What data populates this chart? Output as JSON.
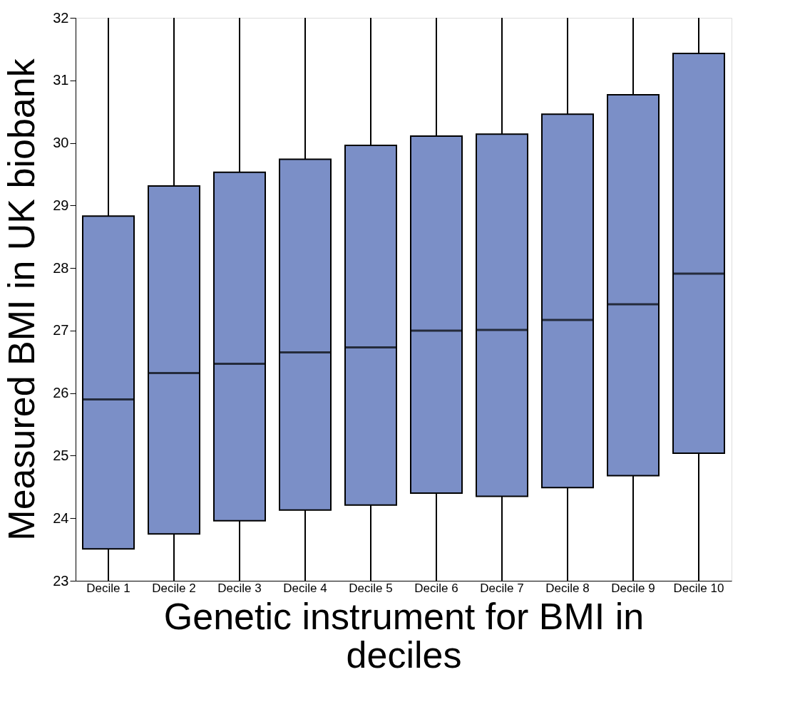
{
  "chart_data": {
    "type": "box",
    "xlabel": "Genetic instrument for BMI in deciles",
    "ylabel": "Measured BMI in UK biobank",
    "categories": [
      "Decile 1",
      "Decile 2",
      "Decile 3",
      "Decile 4",
      "Decile 5",
      "Decile 6",
      "Decile 7",
      "Decile 8",
      "Decile 9",
      "Decile 10"
    ],
    "color": "#7b8fc7",
    "boxes": [
      {
        "low": 23,
        "q1": 23.51,
        "median": 25.9,
        "q3": 28.83,
        "high": 32
      },
      {
        "low": 23,
        "q1": 23.75,
        "median": 26.32,
        "q3": 29.31,
        "high": 32
      },
      {
        "low": 23,
        "q1": 23.96,
        "median": 26.47,
        "q3": 29.53,
        "high": 32
      },
      {
        "low": 23,
        "q1": 24.13,
        "median": 26.65,
        "q3": 29.74,
        "high": 32
      },
      {
        "low": 23,
        "q1": 24.21,
        "median": 26.73,
        "q3": 29.96,
        "high": 32
      },
      {
        "low": 23,
        "q1": 24.4,
        "median": 27.0,
        "q3": 30.11,
        "high": 32
      },
      {
        "low": 23,
        "q1": 24.35,
        "median": 27.01,
        "q3": 30.14,
        "high": 32
      },
      {
        "low": 23,
        "q1": 24.49,
        "median": 27.17,
        "q3": 30.46,
        "high": 32
      },
      {
        "low": 23,
        "q1": 24.68,
        "median": 27.42,
        "q3": 30.77,
        "high": 32
      },
      {
        "low": 23,
        "q1": 25.04,
        "median": 27.91,
        "q3": 31.43,
        "high": 32
      }
    ],
    "ylim": [
      23,
      32
    ],
    "yticks": [
      23,
      24,
      25,
      26,
      27,
      28,
      29,
      30,
      31,
      32
    ],
    "grid": false
  }
}
